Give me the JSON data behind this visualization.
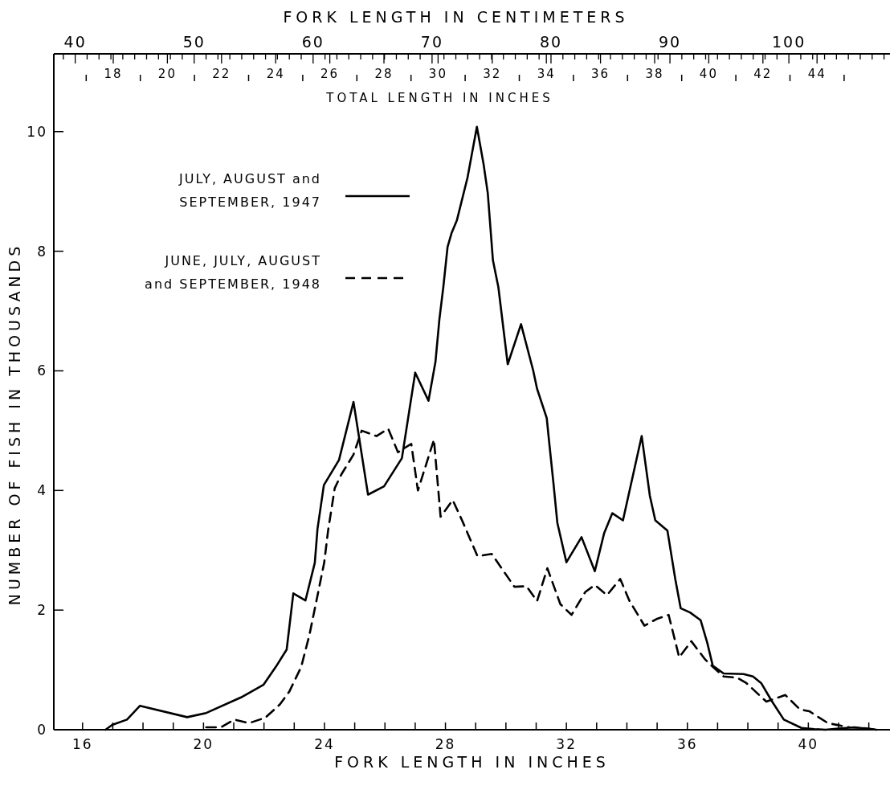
{
  "chart_data": {
    "type": "line",
    "xlabel": "FORK LENGTH IN INCHES",
    "ylabel": "NUMBER OF FISH IN THOUSANDS",
    "x2label": "FORK LENGTH IN CENTIMETERS",
    "annotations": [
      "TOTAL LENGTH IN INCHES",
      "18",
      "20",
      "22",
      "24",
      "26",
      "28",
      "30",
      "32",
      "34",
      "36",
      "38",
      "40",
      "42",
      "44"
    ],
    "xlim": [
      15.05,
      42.7
    ],
    "ylim": [
      0,
      11.3
    ],
    "x2lim": [
      38.2,
      108.5
    ],
    "xticks": [
      16,
      {
        "value": 17,
        "label": null
      },
      {
        "value": 18,
        "label": null
      },
      {
        "value": 19,
        "label": null
      },
      20,
      {
        "value": 21,
        "label": null
      },
      {
        "value": 22,
        "label": null
      },
      {
        "value": 23,
        "label": null
      },
      24,
      {
        "value": 25,
        "label": null
      },
      {
        "value": 26,
        "label": null
      },
      {
        "value": 27,
        "label": null
      },
      28,
      {
        "value": 29,
        "label": null
      },
      {
        "value": 30,
        "label": null
      },
      {
        "value": 31,
        "label": null
      },
      32,
      {
        "value": 33,
        "label": null
      },
      {
        "value": 34,
        "label": null
      },
      {
        "value": 35,
        "label": null
      },
      36,
      {
        "value": 37,
        "label": null
      },
      {
        "value": 38,
        "label": null
      },
      {
        "value": 39,
        "label": null
      },
      40,
      {
        "value": 41,
        "label": null
      },
      {
        "value": 42,
        "label": null
      }
    ],
    "yticks": [
      0,
      2,
      4,
      6,
      8,
      10
    ],
    "x2ticks": [
      {
        "value": 39,
        "label": null
      },
      40,
      {
        "value": 41,
        "label": null
      },
      {
        "value": 42,
        "label": null
      },
      {
        "value": 43,
        "label": null
      },
      {
        "value": 44,
        "label": null
      },
      {
        "value": 45,
        "label": null
      },
      {
        "value": 46,
        "label": null
      },
      {
        "value": 47,
        "label": null
      },
      {
        "value": 48,
        "label": null
      },
      {
        "value": 49,
        "label": null
      },
      50,
      {
        "value": 51,
        "label": null
      },
      {
        "value": 52,
        "label": null
      },
      {
        "value": 53,
        "label": null
      },
      {
        "value": 54,
        "label": null
      },
      {
        "value": 55,
        "label": null
      },
      {
        "value": 56,
        "label": null
      },
      {
        "value": 57,
        "label": null
      },
      {
        "value": 58,
        "label": null
      },
      {
        "value": 59,
        "label": null
      },
      60,
      {
        "value": 61,
        "label": null
      },
      {
        "value": 62,
        "label": null
      },
      {
        "value": 63,
        "label": null
      },
      {
        "value": 64,
        "label": null
      },
      {
        "value": 65,
        "label": null
      },
      {
        "value": 66,
        "label": null
      },
      {
        "value": 67,
        "label": null
      },
      {
        "value": 68,
        "label": null
      },
      {
        "value": 69,
        "label": null
      },
      70,
      {
        "value": 71,
        "label": null
      },
      {
        "value": 72,
        "label": null
      },
      {
        "value": 73,
        "label": null
      },
      {
        "value": 74,
        "label": null
      },
      {
        "value": 75,
        "label": null
      },
      {
        "value": 76,
        "label": null
      },
      {
        "value": 77,
        "label": null
      },
      {
        "value": 78,
        "label": null
      },
      {
        "value": 79,
        "label": null
      },
      80,
      {
        "value": 81,
        "label": null
      },
      {
        "value": 82,
        "label": null
      },
      {
        "value": 83,
        "label": null
      },
      {
        "value": 84,
        "label": null
      },
      {
        "value": 85,
        "label": null
      },
      {
        "value": 86,
        "label": null
      },
      {
        "value": 87,
        "label": null
      },
      {
        "value": 88,
        "label": null
      },
      {
        "value": 89,
        "label": null
      },
      90,
      {
        "value": 91,
        "label": null
      },
      {
        "value": 92,
        "label": null
      },
      {
        "value": 93,
        "label": null
      },
      {
        "value": 94,
        "label": null
      },
      {
        "value": 95,
        "label": null
      },
      {
        "value": 96,
        "label": null
      },
      {
        "value": 97,
        "label": null
      },
      {
        "value": 98,
        "label": null
      },
      {
        "value": 99,
        "label": null
      },
      100,
      {
        "value": 101,
        "label": null
      },
      {
        "value": 102,
        "label": null
      },
      {
        "value": 103,
        "label": null
      },
      {
        "value": 104,
        "label": null
      },
      {
        "value": 105,
        "label": null
      },
      {
        "value": 106,
        "label": null
      },
      {
        "value": 107,
        "label": null
      },
      {
        "value": 108,
        "label": null
      }
    ],
    "legend": "top left",
    "grid": false,
    "marker": "none",
    "series": [
      {
        "name": "JULY, AUGUST and SEPTEMBER, 1947",
        "color": "#000000",
        "line_style": "solid",
        "x": [
          16.76,
          16.98,
          17.47,
          17.9,
          19.46,
          20.09,
          21.24,
          21.98,
          22.39,
          22.75,
          22.97,
          23.37,
          23.68,
          23.77,
          23.98,
          24.48,
          24.96,
          25.44,
          25.97,
          26.56,
          27.0,
          27.44,
          27.67,
          27.8,
          27.93,
          28.07,
          28.2,
          28.38,
          28.73,
          29.04,
          29.26,
          29.4,
          29.57,
          29.75,
          30.06,
          30.5,
          30.9,
          31.03,
          31.35,
          31.43,
          31.57,
          31.7,
          32.0,
          32.5,
          32.94,
          33.25,
          33.52,
          33.87,
          34.49,
          34.76,
          34.94,
          35.34,
          35.6,
          35.78,
          36.09,
          36.44,
          36.66,
          36.84,
          37.2,
          37.86,
          38.17,
          38.44,
          38.79,
          39.19,
          39.77,
          40.2,
          40.57,
          41.0,
          41.53,
          42.25
        ],
        "values": [
          0,
          0.08,
          0.17,
          0.4,
          0.21,
          0.28,
          0.54,
          0.75,
          1.05,
          1.34,
          2.28,
          2.16,
          2.79,
          3.36,
          4.09,
          4.51,
          5.48,
          3.93,
          4.07,
          4.54,
          5.97,
          5.5,
          6.15,
          6.86,
          7.4,
          8.07,
          8.3,
          8.52,
          9.23,
          10.08,
          9.46,
          8.97,
          7.85,
          7.4,
          6.11,
          6.78,
          6.01,
          5.7,
          5.21,
          4.81,
          4.13,
          3.46,
          2.8,
          3.22,
          2.65,
          3.29,
          3.62,
          3.5,
          4.91,
          3.91,
          3.5,
          3.33,
          2.52,
          2.03,
          1.96,
          1.83,
          1.45,
          1.07,
          0.94,
          0.93,
          0.89,
          0.78,
          0.48,
          0.17,
          0.03,
          0.01,
          0,
          0.02,
          0.04,
          0
        ]
      },
      {
        "name": "JUNE, JULY, AUGUST and SEPTEMBER, 1948",
        "color": "#000000",
        "line_style": "dashed",
        "x": [
          20.09,
          20.57,
          21.02,
          21.5,
          22.04,
          22.52,
          22.84,
          23.23,
          23.5,
          23.72,
          23.99,
          24.12,
          24.34,
          24.56,
          24.96,
          25.23,
          25.72,
          26.11,
          26.43,
          26.87,
          27.09,
          27.62,
          27.84,
          28.24,
          28.55,
          29.06,
          29.53,
          30.28,
          30.68,
          31.03,
          31.37,
          31.8,
          32.17,
          32.62,
          32.94,
          33.34,
          33.78,
          34.08,
          34.58,
          34.98,
          35.38,
          35.73,
          36.13,
          36.58,
          36.8,
          37.2,
          37.64,
          37.95,
          38.61,
          39.24,
          39.72,
          40.03,
          40.65,
          41.36,
          41.8,
          42.25
        ],
        "values": [
          0.04,
          0.04,
          0.17,
          0.11,
          0.2,
          0.42,
          0.64,
          1.05,
          1.58,
          2.12,
          2.79,
          3.33,
          4.04,
          4.27,
          4.6,
          5.0,
          4.91,
          5.03,
          4.64,
          4.78,
          4.0,
          4.85,
          3.56,
          3.84,
          3.5,
          2.9,
          2.94,
          2.39,
          2.4,
          2.15,
          2.7,
          2.1,
          1.92,
          2.3,
          2.42,
          2.25,
          2.52,
          2.16,
          1.74,
          1.85,
          1.92,
          1.21,
          1.48,
          1.18,
          1.07,
          0.89,
          0.87,
          0.78,
          0.47,
          0.58,
          0.34,
          0.31,
          0.11,
          0.04,
          0.03,
          0
        ]
      }
    ]
  }
}
